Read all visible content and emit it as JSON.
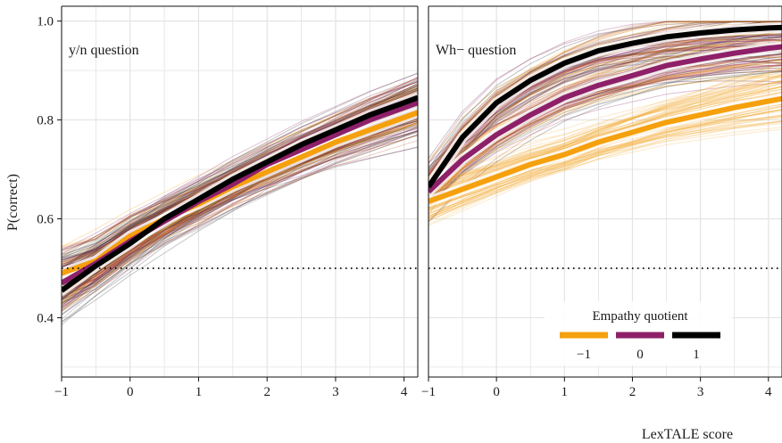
{
  "chart_data": {
    "type": "line",
    "ylabel": "P(correct)",
    "xlabel": "LexTALE score",
    "xlim": [
      -1,
      4.2
    ],
    "ylim": [
      0.28,
      1.03
    ],
    "x_ticks": [
      -1,
      0,
      1,
      2,
      3,
      4
    ],
    "x_tick_labels": [
      "−1",
      "0",
      "1",
      "2",
      "3",
      "4"
    ],
    "y_ticks": [
      0.4,
      0.6,
      0.8,
      1.0
    ],
    "y_tick_labels": [
      "0.4",
      "0.6",
      "0.8",
      "1.0"
    ],
    "reference_line": 0.5,
    "grid": true,
    "legend": {
      "title": "Empathy quotient",
      "placement": "bottom-right of right panel",
      "entries": [
        {
          "label": "−1",
          "color": "#F5A00D"
        },
        {
          "label": "0",
          "color": "#8E2069"
        },
        {
          "label": "1",
          "color": "#000000"
        }
      ]
    },
    "panels": [
      {
        "title": "y/n question",
        "x": [
          -1,
          -0.5,
          0,
          0.5,
          1,
          1.5,
          2,
          2.5,
          3,
          3.5,
          4,
          4.2
        ],
        "series": [
          {
            "name": "−1",
            "color": "#F5A00D",
            "values": [
              0.49,
              0.515,
              0.565,
              0.6,
              0.63,
              0.665,
              0.695,
              0.725,
              0.755,
              0.78,
              0.805,
              0.815
            ]
          },
          {
            "name": "0",
            "color": "#8E2069",
            "values": [
              0.47,
              0.51,
              0.555,
              0.595,
              0.635,
              0.67,
              0.71,
              0.74,
              0.77,
              0.8,
              0.825,
              0.835
            ]
          },
          {
            "name": "1",
            "color": "#000000",
            "values": [
              0.455,
              0.505,
              0.55,
              0.6,
              0.64,
              0.68,
              0.715,
              0.75,
              0.78,
              0.81,
              0.835,
              0.845
            ]
          }
        ]
      },
      {
        "title": "Wh− question",
        "x": [
          -1,
          -0.5,
          0,
          0.5,
          1,
          1.5,
          2,
          2.5,
          3,
          3.5,
          4,
          4.2
        ],
        "series": [
          {
            "name": "−1",
            "color": "#F5A00D",
            "values": [
              0.635,
              0.66,
              0.685,
              0.71,
              0.73,
              0.755,
              0.775,
              0.795,
              0.81,
              0.825,
              0.838,
              0.843
            ]
          },
          {
            "name": "0",
            "color": "#8E2069",
            "values": [
              0.655,
              0.72,
              0.77,
              0.81,
              0.845,
              0.87,
              0.89,
              0.91,
              0.923,
              0.935,
              0.945,
              0.948
            ]
          },
          {
            "name": "1",
            "color": "#000000",
            "values": [
              0.665,
              0.765,
              0.835,
              0.88,
              0.915,
              0.94,
              0.955,
              0.968,
              0.976,
              0.982,
              0.986,
              0.987
            ]
          }
        ]
      }
    ]
  }
}
